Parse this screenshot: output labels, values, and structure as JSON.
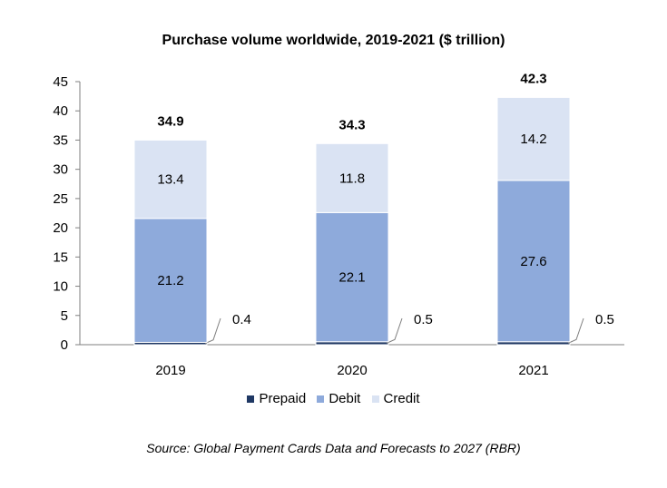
{
  "chart_data": {
    "type": "bar",
    "stacked": true,
    "title": "Purchase volume worldwide, 2019-2021 ($ trillion)",
    "categories": [
      "2019",
      "2020",
      "2021"
    ],
    "series": [
      {
        "name": "Prepaid",
        "values": [
          0.4,
          0.5,
          0.5
        ],
        "color": "#1f3864"
      },
      {
        "name": "Debit",
        "values": [
          21.2,
          22.1,
          27.6
        ],
        "color": "#8eaadb"
      },
      {
        "name": "Credit",
        "values": [
          13.4,
          11.8,
          14.2
        ],
        "color": "#dae3f3"
      }
    ],
    "totals": [
      "34.9",
      "34.3",
      "42.3"
    ],
    "ylim": [
      0,
      45
    ],
    "yticks": [
      "0",
      "5",
      "10",
      "15",
      "20",
      "25",
      "30",
      "35",
      "40",
      "45"
    ],
    "legend_position": "bottom",
    "grid": false
  },
  "legend": {
    "items": [
      {
        "label": "Prepaid",
        "color": "#1f3864"
      },
      {
        "label": "Debit",
        "color": "#8eaadb"
      },
      {
        "label": "Credit",
        "color": "#dae3f3"
      }
    ]
  },
  "source": "Source: Global Payment Cards Data and Forecasts to 2027 (RBR)"
}
